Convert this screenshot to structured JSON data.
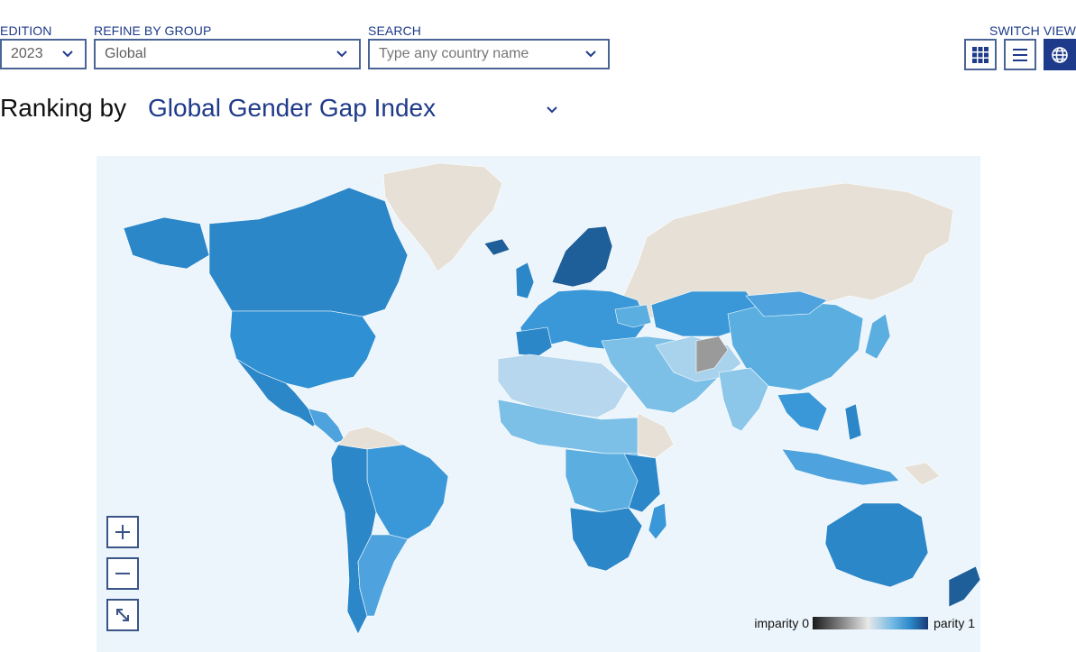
{
  "filters": {
    "edition": {
      "label": "EDITION",
      "value": "2023"
    },
    "group": {
      "label": "REFINE BY GROUP",
      "value": "Global"
    },
    "search": {
      "label": "SEARCH",
      "placeholder": "Type any country name"
    }
  },
  "switch_view": {
    "label": "SWITCH VIEW",
    "options": [
      "grid-view",
      "list-view",
      "map-view"
    ],
    "active": "map-view"
  },
  "ranking": {
    "prefix": "Ranking by",
    "metric": "Global Gender Gap Index"
  },
  "map": {
    "legend": {
      "min_label": "imparity 0",
      "max_label": "parity 1"
    },
    "colors": {
      "ocean": "#ecf5fb",
      "no_data": "#e6e0d6",
      "low": "#b7d7ee",
      "mid": "#5aaee0",
      "high": "#2c87c9",
      "top": "#1e5f9a"
    }
  },
  "accent_color": "#1e3a8a"
}
